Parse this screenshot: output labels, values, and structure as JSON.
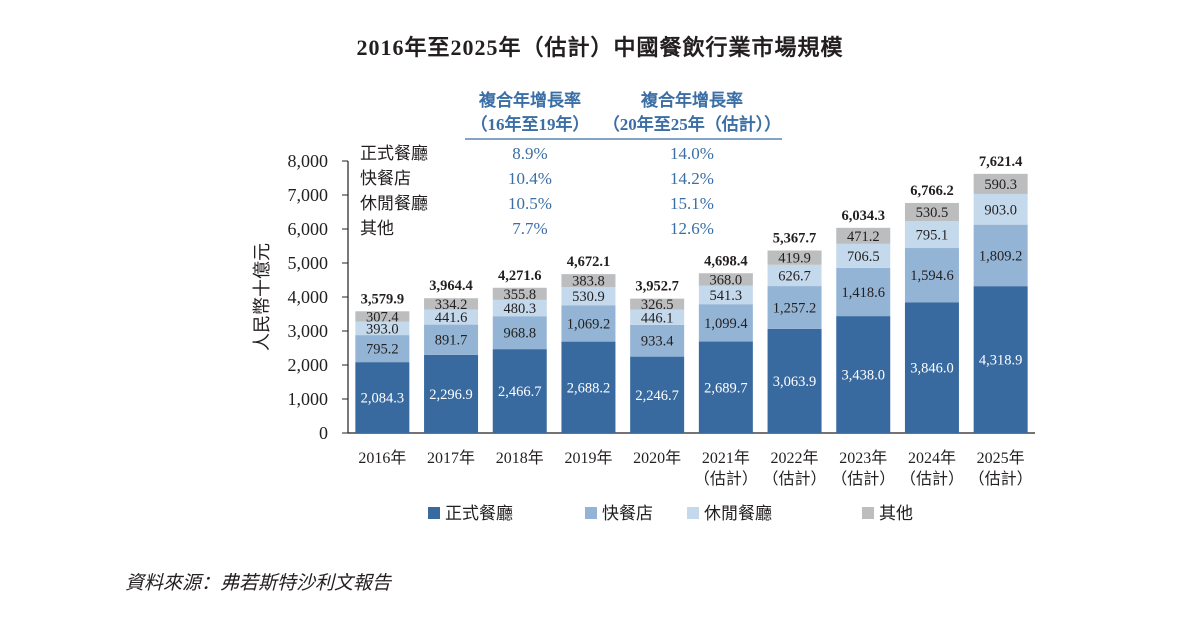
{
  "chart_data": {
    "type": "bar",
    "stacked": true,
    "title": "2016年至2025年（估計）中國餐飲行業市場規模",
    "ylabel": "人民幣十億元",
    "xlabel": "",
    "ylim": [
      0,
      8000
    ],
    "yticks": [
      "0",
      "1,000",
      "2,000",
      "3,000",
      "4,000",
      "5,000",
      "6,000",
      "7,000",
      "8,000"
    ],
    "grid": false,
    "legend_position": "bottom",
    "categories": [
      [
        "2016年"
      ],
      [
        "2017年"
      ],
      [
        "2018年"
      ],
      [
        "2019年"
      ],
      [
        "2020年"
      ],
      [
        "2021年",
        "（估計）"
      ],
      [
        "2022年",
        "（估計）"
      ],
      [
        "2023年",
        "（估計）"
      ],
      [
        "2024年",
        "（估計）"
      ],
      [
        "2025年",
        "（估計）"
      ]
    ],
    "series": [
      {
        "name": "正式餐廳",
        "color": "#386aa0",
        "label_color": "#ffffff",
        "values": [
          2084.3,
          2296.9,
          2466.7,
          2688.2,
          2246.7,
          2689.7,
          3063.9,
          3438.0,
          3846.0,
          4318.9
        ],
        "labels": [
          "2,084.3",
          "2,296.9",
          "2,466.7",
          "2,688.2",
          "2,246.7",
          "2,689.7",
          "3,063.9",
          "3,438.0",
          "3,846.0",
          "4,318.9"
        ]
      },
      {
        "name": "快餐店",
        "color": "#93b4d4",
        "label_color": "#231f20",
        "values": [
          795.2,
          891.7,
          968.8,
          1069.2,
          933.4,
          1099.4,
          1257.2,
          1418.6,
          1594.6,
          1809.2
        ],
        "labels": [
          "795.2",
          "891.7",
          "968.8",
          "1,069.2",
          "933.4",
          "1,099.4",
          "1,257.2",
          "1,418.6",
          "1,594.6",
          "1,809.2"
        ]
      },
      {
        "name": "休閒餐廳",
        "color": "#c5d9ec",
        "label_color": "#231f20",
        "values": [
          393.0,
          441.6,
          480.3,
          530.9,
          446.1,
          541.3,
          626.7,
          706.5,
          795.1,
          903.0
        ],
        "labels": [
          "393.0",
          "441.6",
          "480.3",
          "530.9",
          "446.1",
          "541.3",
          "626.7",
          "706.5",
          "795.1",
          "903.0"
        ]
      },
      {
        "name": "其他",
        "color": "#bcbdbf",
        "label_color": "#231f20",
        "values": [
          307.4,
          334.2,
          355.8,
          383.8,
          326.5,
          368.0,
          419.9,
          471.2,
          530.5,
          590.3
        ],
        "labels": [
          "307.4",
          "334.2",
          "355.8",
          "383.8",
          "326.5",
          "368.0",
          "419.9",
          "471.2",
          "530.5",
          "590.3"
        ]
      }
    ],
    "totals": [
      3579.9,
      3964.4,
      4271.6,
      4672.1,
      3952.7,
      4698.4,
      5367.7,
      6034.3,
      6766.2,
      7621.4
    ],
    "total_labels": [
      "3,579.9",
      "3,964.4",
      "4,271.6",
      "4,672.1",
      "3,952.7",
      "4,698.4",
      "5,367.7",
      "6,034.3",
      "6,766.2",
      "7,621.4"
    ],
    "cagr_table": {
      "headers": [
        [
          "複合年增長率",
          "（16年至19年）"
        ],
        [
          "複合年增長率",
          "（20年至25年（估計））"
        ]
      ],
      "rows": [
        {
          "label": "正式餐廳",
          "values": [
            "8.9%",
            "14.0%"
          ]
        },
        {
          "label": "快餐店",
          "values": [
            "10.4%",
            "14.2%"
          ]
        },
        {
          "label": "休閒餐廳",
          "values": [
            "10.5%",
            "15.1%"
          ]
        },
        {
          "label": "其他",
          "values": [
            "7.7%",
            "12.6%"
          ]
        }
      ]
    }
  },
  "source": "資料來源：弗若斯特沙利文報告"
}
